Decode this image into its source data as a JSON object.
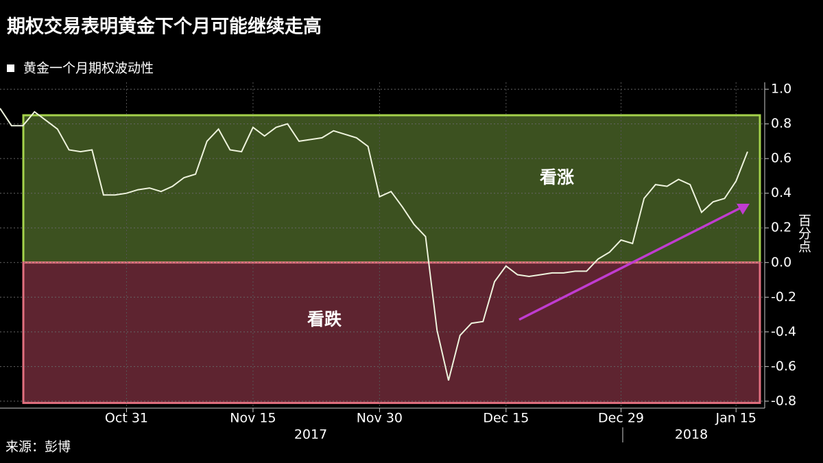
{
  "chart_data": {
    "type": "line",
    "title": "期权交易表明黄金下个月可能继续走高",
    "y_axis_label": "百分点",
    "source": "来源：彭博",
    "categories": [
      null,
      null,
      null,
      null,
      null,
      null,
      null,
      null,
      null,
      null,
      null,
      "Oct 31",
      null,
      null,
      null,
      null,
      null,
      null,
      null,
      null,
      null,
      null,
      "Nov 15",
      null,
      null,
      null,
      null,
      null,
      null,
      null,
      null,
      null,
      null,
      "Nov 30",
      null,
      null,
      null,
      null,
      null,
      null,
      null,
      null,
      null,
      null,
      "Dec 15",
      null,
      null,
      null,
      null,
      null,
      null,
      null,
      null,
      null,
      "Dec 29",
      null,
      null,
      null,
      null,
      null,
      null,
      null,
      null,
      null,
      "Jan 15",
      null
    ],
    "year_labels": [
      "2017",
      "2018"
    ],
    "series": [
      {
        "name": "黄金一个月期权波动性",
        "color": "#eef3dd",
        "values": [
          0.89,
          0.79,
          0.79,
          0.87,
          0.82,
          0.77,
          0.65,
          0.64,
          0.65,
          0.39,
          0.39,
          0.4,
          0.42,
          0.43,
          0.41,
          0.44,
          0.49,
          0.51,
          0.7,
          0.77,
          0.65,
          0.64,
          0.78,
          0.73,
          0.78,
          0.8,
          0.7,
          0.71,
          0.72,
          0.76,
          0.74,
          0.72,
          0.67,
          0.38,
          0.41,
          0.32,
          0.22,
          0.15,
          -0.39,
          -0.68,
          -0.42,
          -0.35,
          -0.34,
          -0.11,
          -0.02,
          -0.07,
          -0.08,
          -0.07,
          -0.06,
          -0.06,
          -0.05,
          -0.05,
          0.02,
          0.06,
          0.13,
          0.11,
          0.37,
          0.45,
          0.44,
          0.48,
          0.45,
          0.29,
          0.35,
          0.37,
          0.47,
          0.64
        ]
      }
    ],
    "bands": [
      {
        "label": "看涨",
        "from": 0,
        "to": 0.85,
        "color": "#3c5120",
        "border": "#a5d24b"
      },
      {
        "label": "看跌",
        "from": 0,
        "to": -0.81,
        "color": "#5e2430",
        "border": "#e2707f"
      }
    ],
    "ylim": [
      -0.84,
      1.04
    ],
    "yticks": [
      {
        "value": 1,
        "label": "1.0"
      },
      0.8,
      0.6,
      0.4,
      0.2,
      {
        "value": 0,
        "label": "0.0"
      },
      -0.2,
      -0.4,
      -0.6,
      -0.8
    ],
    "grid": true
  }
}
